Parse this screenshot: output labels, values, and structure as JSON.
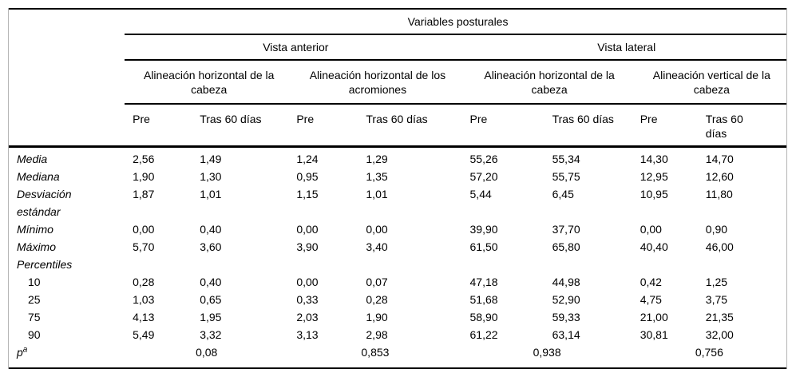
{
  "table": {
    "title": "Variables posturales",
    "views": [
      "Vista anterior",
      "Vista lateral"
    ],
    "measures": [
      "Alineación horizontal de la cabeza",
      "Alineación horizontal de los acromiones",
      "Alineación horizontal de la cabeza",
      "Alineación vertical de la cabeza"
    ],
    "periods": [
      "Pre",
      "Tras 60 días",
      "Pre",
      "Tras 60 días",
      "Pre",
      "Tras 60 días",
      "Pre",
      "Tras 60 días"
    ],
    "rows": [
      {
        "label": "Media",
        "indent": false,
        "values": [
          "2,56",
          "1,49",
          "1,24",
          "1,29",
          "55,26",
          "55,34",
          "14,30",
          "14,70"
        ]
      },
      {
        "label": "Mediana",
        "indent": false,
        "values": [
          "1,90",
          "1,30",
          "0,95",
          "1,35",
          "57,20",
          "55,75",
          "12,95",
          "12,60"
        ]
      },
      {
        "label": "Desviación estándar",
        "indent": false,
        "values": [
          "1,87",
          "1,01",
          "1,15",
          "1,01",
          "5,44",
          "6,45",
          "10,95",
          "11,80"
        ]
      },
      {
        "label": "Mínimo",
        "indent": false,
        "values": [
          "0,00",
          "0,40",
          "0,00",
          "0,00",
          "39,90",
          "37,70",
          "0,00",
          "0,90"
        ]
      },
      {
        "label": "Máximo",
        "indent": false,
        "values": [
          "5,70",
          "3,60",
          "3,90",
          "3,40",
          "61,50",
          "65,80",
          "40,40",
          "46,00"
        ]
      },
      {
        "label": "Percentiles",
        "indent": false,
        "values": [
          "",
          "",
          "",
          "",
          "",
          "",
          "",
          ""
        ]
      },
      {
        "label": "10",
        "indent": true,
        "values": [
          "0,28",
          "0,40",
          "0,00",
          "0,07",
          "47,18",
          "44,98",
          "0,42",
          "1,25"
        ]
      },
      {
        "label": "25",
        "indent": true,
        "values": [
          "1,03",
          "0,65",
          "0,33",
          "0,28",
          "51,68",
          "52,90",
          "4,75",
          "3,75"
        ]
      },
      {
        "label": "75",
        "indent": true,
        "values": [
          "4,13",
          "1,95",
          "2,03",
          "1,90",
          "58,90",
          "59,33",
          "21,00",
          "21,35"
        ]
      },
      {
        "label": "90",
        "indent": true,
        "values": [
          "5,49",
          "3,32",
          "3,13",
          "2,98",
          "61,22",
          "63,14",
          "30,81",
          "32,00"
        ]
      }
    ],
    "p_row": {
      "label": "p",
      "sup": "a",
      "values": [
        "0,08",
        "0,853",
        "0,938",
        "0,756"
      ]
    }
  }
}
